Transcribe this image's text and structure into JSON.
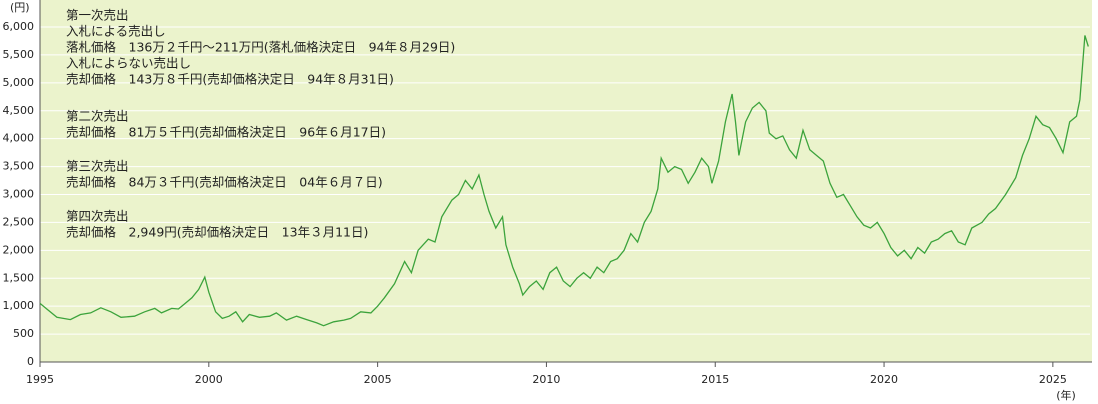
{
  "chart_data": {
    "type": "line",
    "y_unit_label": "(円)",
    "x_unit_label": "(年)",
    "annotations": [
      [
        "第一次売出",
        "入札による売出し",
        "落札価格　136万２千円〜211万円(落札価格決定日　94年８月29日)",
        "入札によらない売出し",
        "売却価格　143万８千円(売却価格決定日　94年８月31日)"
      ],
      [
        "第二次売出",
        "売却価格　81万５千円(売却価格決定日　96年６月17日)"
      ],
      [
        "第三次売出",
        "売却価格　84万３千円(売却価格決定日　04年６月７日)"
      ],
      [
        "第四次売出",
        "売却価格　2,949円(売却価格決定日　13年３月11日)"
      ]
    ],
    "color": "#3ca33c",
    "x": [
      1995.0,
      1995.2,
      1995.5,
      1995.9,
      1996.2,
      1996.5,
      1996.8,
      1997.1,
      1997.4,
      1997.8,
      1998.1,
      1998.4,
      1998.6,
      1998.9,
      1999.1,
      1999.3,
      1999.5,
      1999.7,
      1999.88,
      2000.0,
      2000.2,
      2000.4,
      2000.6,
      2000.8,
      2001.0,
      2001.2,
      2001.5,
      2001.8,
      2002.0,
      2002.3,
      2002.6,
      2002.9,
      2003.2,
      2003.4,
      2003.7,
      2004.0,
      2004.2,
      2004.5,
      2004.8,
      2005.0,
      2005.2,
      2005.5,
      2005.8,
      2006.0,
      2006.2,
      2006.5,
      2006.7,
      2006.9,
      2007.2,
      2007.4,
      2007.6,
      2007.8,
      2008.0,
      2008.15,
      2008.3,
      2008.5,
      2008.7,
      2008.8,
      2009.0,
      2009.2,
      2009.3,
      2009.5,
      2009.7,
      2009.9,
      2010.1,
      2010.3,
      2010.5,
      2010.7,
      2010.9,
      2011.1,
      2011.3,
      2011.5,
      2011.7,
      2011.9,
      2012.1,
      2012.3,
      2012.5,
      2012.7,
      2012.9,
      2013.1,
      2013.3,
      2013.4,
      2013.6,
      2013.8,
      2014.0,
      2014.2,
      2014.4,
      2014.6,
      2014.8,
      2014.9,
      2015.1,
      2015.3,
      2015.5,
      2015.6,
      2015.7,
      2015.9,
      2016.1,
      2016.3,
      2016.5,
      2016.6,
      2016.8,
      2017.0,
      2017.2,
      2017.4,
      2017.6,
      2017.8,
      2018.0,
      2018.2,
      2018.4,
      2018.6,
      2018.8,
      2019.0,
      2019.2,
      2019.4,
      2019.6,
      2019.8,
      2020.0,
      2020.2,
      2020.4,
      2020.6,
      2020.8,
      2021.0,
      2021.2,
      2021.4,
      2021.6,
      2021.8,
      2022.0,
      2022.2,
      2022.4,
      2022.6,
      2022.9,
      2023.1,
      2023.3,
      2023.6,
      2023.9,
      2024.1,
      2024.3,
      2024.5,
      2024.7,
      2024.9,
      2025.1,
      2025.3,
      2025.5,
      2025.7,
      2025.8,
      2025.95,
      2026.05
    ],
    "values": [
      1050,
      950,
      800,
      760,
      850,
      880,
      970,
      900,
      800,
      820,
      900,
      960,
      880,
      960,
      950,
      1050,
      1150,
      1300,
      1520,
      1250,
      900,
      780,
      820,
      900,
      720,
      850,
      800,
      820,
      880,
      750,
      820,
      760,
      700,
      650,
      720,
      750,
      780,
      900,
      880,
      1000,
      1150,
      1400,
      1800,
      1600,
      2000,
      2200,
      2150,
      2600,
      2900,
      3000,
      3250,
      3100,
      3350,
      3000,
      2700,
      2400,
      2600,
      2100,
      1700,
      1400,
      1200,
      1350,
      1450,
      1300,
      1600,
      1700,
      1450,
      1350,
      1500,
      1600,
      1500,
      1700,
      1600,
      1800,
      1850,
      2000,
      2300,
      2150,
      2500,
      2700,
      3100,
      3650,
      3400,
      3500,
      3450,
      3200,
      3400,
      3650,
      3500,
      3200,
      3600,
      4300,
      4800,
      4300,
      3700,
      4300,
      4550,
      4650,
      4500,
      4100,
      4000,
      4050,
      3800,
      3650,
      4150,
      3800,
      3700,
      3600,
      3200,
      2950,
      3000,
      2800,
      2600,
      2450,
      2400,
      2500,
      2300,
      2050,
      1900,
      2000,
      1850,
      2050,
      1950,
      2150,
      2200,
      2300,
      2350,
      2150,
      2100,
      2400,
      2500,
      2650,
      2750,
      3000,
      3300,
      3700,
      4000,
      4400,
      4250,
      4200,
      4000,
      3750,
      4300,
      4400,
      4700,
      5850,
      5650
    ],
    "xlim": [
      1995,
      2026.1
    ],
    "xticks": [
      1995,
      2000,
      2005,
      2010,
      2015,
      2020,
      2025
    ],
    "ylim": [
      0,
      6000
    ],
    "yticks": [
      0,
      500,
      {
        "value": 1000,
        "label": "1,000"
      },
      {
        "value": 1500,
        "label": "1,500"
      },
      {
        "value": 2000,
        "label": "2,000"
      },
      {
        "value": 2500,
        "label": "2,500"
      },
      {
        "value": 3000,
        "label": "3,000"
      },
      {
        "value": 3500,
        "label": "3,500"
      },
      {
        "value": 4000,
        "label": "4,000"
      },
      {
        "value": 4500,
        "label": "4,500"
      },
      {
        "value": 5000,
        "label": "5,000"
      },
      {
        "value": 5500,
        "label": "5,500"
      },
      {
        "value": 6000,
        "label": "6,000"
      }
    ],
    "grid": true
  }
}
